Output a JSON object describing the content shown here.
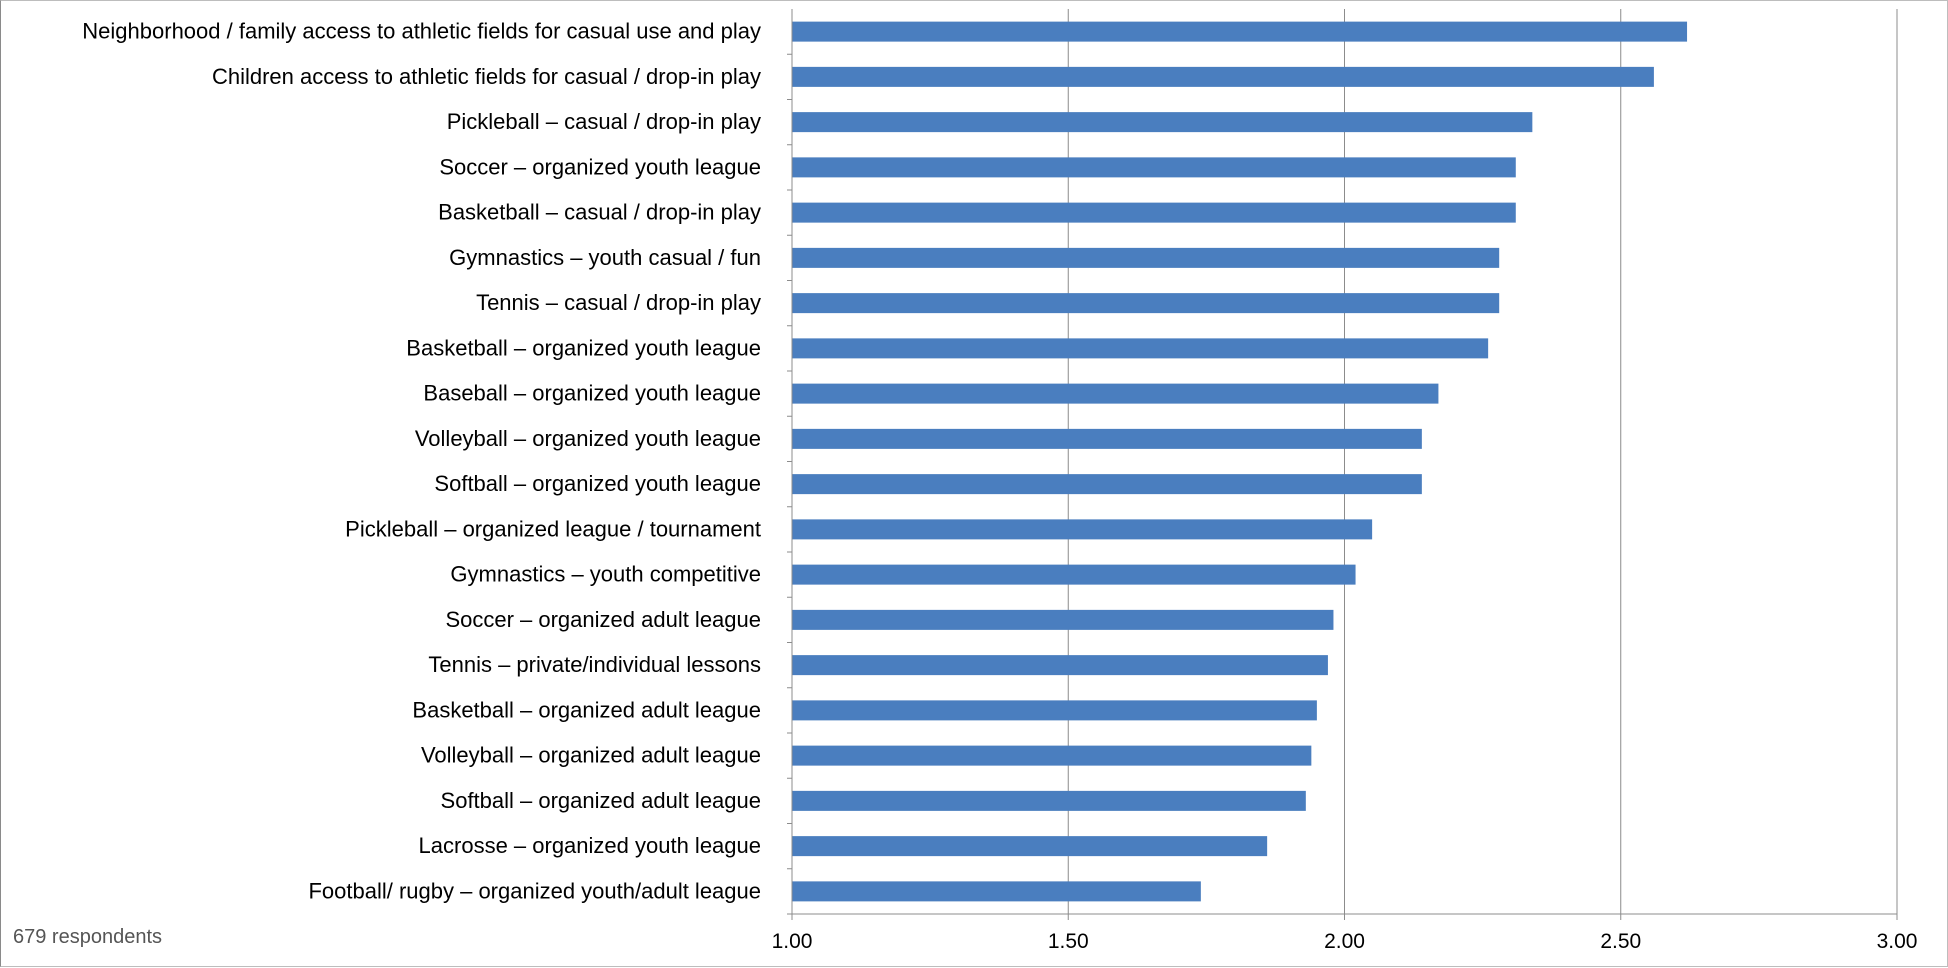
{
  "footnote": "679 respondents",
  "chart_data": {
    "type": "bar",
    "orientation": "horizontal",
    "title": "",
    "xlabel": "",
    "ylabel": "",
    "xlim": [
      1.0,
      3.0
    ],
    "x_ticks": [
      "1.00",
      "1.50",
      "2.00",
      "2.50",
      "3.00"
    ],
    "grid": "vertical",
    "legend": "none",
    "bar_color": "#4a7ebf",
    "categories": [
      "Neighborhood / family access to athletic fields for casual use and play",
      "Children access to athletic fields for casual / drop-in play",
      "Pickleball – casual / drop-in play",
      "Soccer – organized youth league",
      "Basketball – casual / drop-in play",
      "Gymnastics – youth casual / fun",
      "Tennis – casual / drop-in play",
      "Basketball – organized youth league",
      "Baseball – organized youth league",
      "Volleyball – organized youth league",
      "Softball – organized youth league",
      "Pickleball – organized league / tournament",
      "Gymnastics – youth competitive",
      "Soccer – organized adult league",
      "Tennis – private/individual lessons",
      "Basketball – organized adult league",
      "Volleyball – organized adult league",
      "Softball – organized adult league",
      "Lacrosse – organized youth league",
      "Football/ rugby – organized youth/adult league"
    ],
    "values": [
      2.62,
      2.56,
      2.34,
      2.31,
      2.31,
      2.28,
      2.28,
      2.26,
      2.17,
      2.14,
      2.14,
      2.05,
      2.02,
      1.98,
      1.97,
      1.95,
      1.94,
      1.93,
      1.86,
      1.74
    ]
  }
}
